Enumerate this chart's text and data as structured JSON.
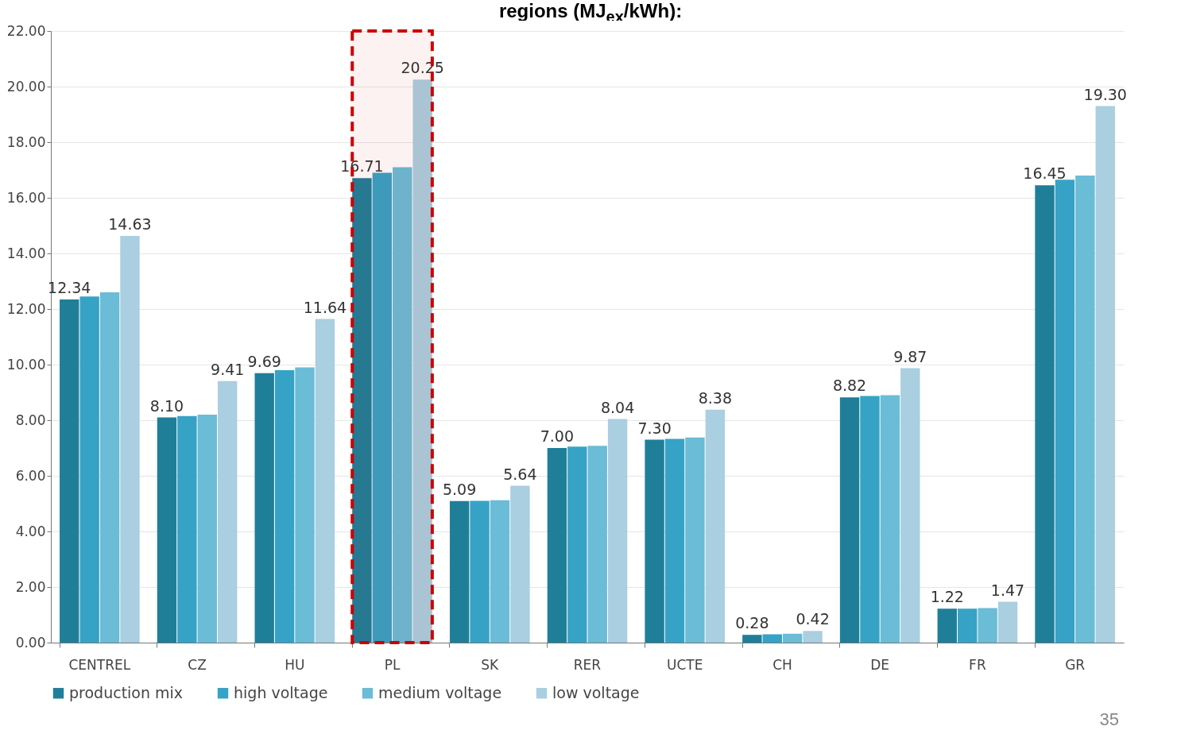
{
  "chart_data": {
    "type": "bar",
    "title": "regions (MJ$_{ex}$/kWh):",
    "categories": [
      "CENTREL",
      "CZ",
      "HU",
      "PL",
      "SK",
      "RER",
      "UCTE",
      "CH",
      "DE",
      "FR",
      "GR"
    ],
    "series": [
      {
        "name": "production mix",
        "color": "#1f7f99",
        "values": [
          12.34,
          8.1,
          9.69,
          16.71,
          5.09,
          7.0,
          7.3,
          0.28,
          8.82,
          1.22,
          16.45
        ],
        "value_labels": [
          "12.34",
          "8.10",
          "9.69",
          "16.71",
          "5.09",
          "7.00",
          "7.30",
          "0.28",
          "8.82",
          "1.22",
          "16.45"
        ]
      },
      {
        "name": "high voltage",
        "color": "#36a3c6",
        "values": [
          12.45,
          8.15,
          9.8,
          16.9,
          5.1,
          7.05,
          7.33,
          0.3,
          8.87,
          1.22,
          16.65
        ]
      },
      {
        "name": "medium voltage",
        "color": "#6bbcd6",
        "values": [
          12.6,
          8.2,
          9.9,
          17.1,
          5.12,
          7.08,
          7.38,
          0.32,
          8.9,
          1.24,
          16.8
        ]
      },
      {
        "name": "low voltage",
        "color": "#a9cfe0",
        "values": [
          14.63,
          9.41,
          11.64,
          20.25,
          5.64,
          8.04,
          8.38,
          0.42,
          9.87,
          1.47,
          19.3
        ],
        "value_labels": [
          "14.63",
          "9.41",
          "11.64",
          "20.25",
          "5.64",
          "8.04",
          "8.38",
          "0.42",
          "9.87",
          "1.47",
          "19.30"
        ]
      }
    ],
    "ylim": [
      0,
      22
    ],
    "yticks": [
      {
        "value": 0,
        "label": "0.00"
      },
      {
        "value": 2,
        "label": "2.00"
      },
      {
        "value": 4,
        "label": "4.00"
      },
      {
        "value": 6,
        "label": "6.00"
      },
      {
        "value": 8,
        "label": "8.00"
      },
      {
        "value": 10,
        "label": "10.00"
      },
      {
        "value": 12,
        "label": "12.00"
      },
      {
        "value": 14,
        "label": "14.00"
      },
      {
        "value": 16,
        "label": "16.00"
      },
      {
        "value": 18,
        "label": "18.00"
      },
      {
        "value": 20,
        "label": "20.00"
      },
      {
        "value": 22,
        "label": "22.00"
      }
    ],
    "grid": "y",
    "legend": "bottom",
    "bands": [
      {
        "axis": "x",
        "from": "PL",
        "to": "PL",
        "color": "#cc0000"
      }
    ],
    "annotations": [
      "35"
    ]
  }
}
